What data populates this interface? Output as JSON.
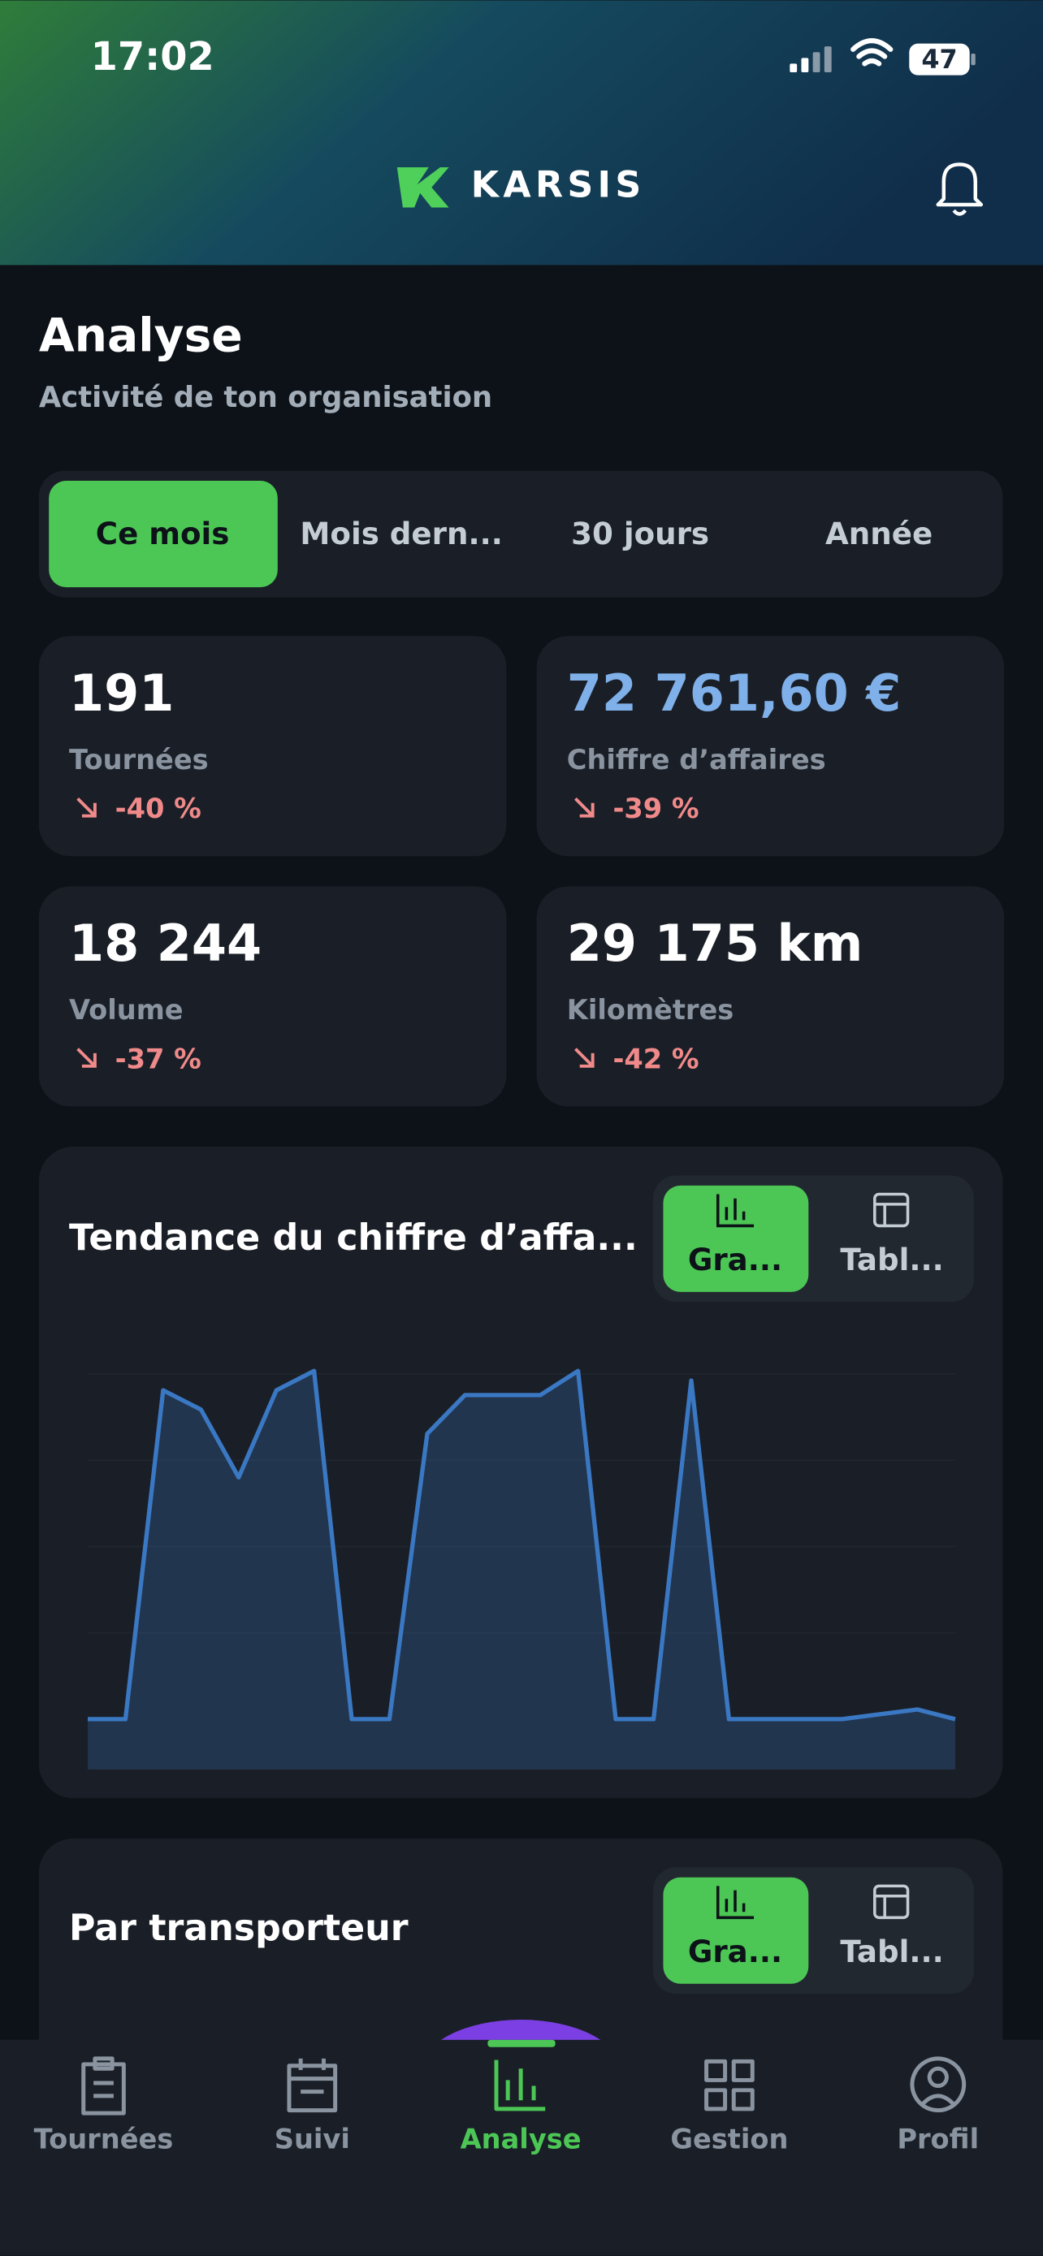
{
  "status_bar": {
    "time": "17:02",
    "battery": "47"
  },
  "header": {
    "brand": "KARSIS"
  },
  "page": {
    "title": "Analyse",
    "subtitle": "Activité de ton organisation"
  },
  "period_tabs": [
    "Ce mois",
    "Mois dern...",
    "30 jours",
    "Année"
  ],
  "kpis": [
    {
      "value": "191",
      "label": "Tournées",
      "change": "-40 %"
    },
    {
      "value": "72 761,60 €",
      "label": "Chiffre d’affaires",
      "change": "-39 %"
    },
    {
      "value": "18 244",
      "label": "Volume",
      "change": "-37 %"
    },
    {
      "value": "29 175 km",
      "label": "Kilomètres",
      "change": "-42 %"
    }
  ],
  "trend_chart": {
    "type": "area",
    "title": "Tendance du chiffre d’affa...",
    "toggle": [
      "Gra...",
      "Tabl..."
    ],
    "color": "#3a78c4",
    "values": [
      0,
      0,
      6800,
      6400,
      5000,
      6800,
      7200,
      0,
      0,
      5900,
      6700,
      6700,
      6700,
      7200,
      0,
      0,
      7000,
      0,
      0,
      0,
      0,
      100,
      200,
      0
    ],
    "ylim": [
      0,
      8000
    ]
  },
  "carrier_section": {
    "title": "Par transporteur",
    "toggle": [
      "Gra...",
      "Tabl..."
    ]
  },
  "nav": [
    "Tournées",
    "Suivi",
    "Analyse",
    "Gestion",
    "Profil"
  ]
}
